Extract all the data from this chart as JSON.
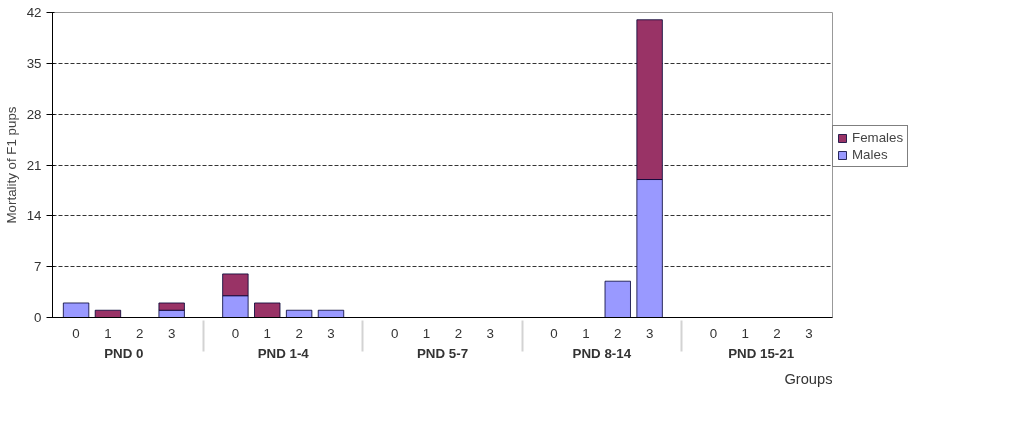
{
  "chart_data": {
    "type": "bar",
    "stacked": true,
    "ylabel": "Mortality of F1 pups",
    "xlabel": "Groups",
    "categories": [
      "0",
      "1",
      "2",
      "3",
      "0",
      "1",
      "2",
      "3",
      "0",
      "1",
      "2",
      "3",
      "0",
      "1",
      "2",
      "3",
      "0",
      "1",
      "2",
      "3"
    ],
    "annotations": [
      "PND 0",
      "PND 1-4",
      "PND 5-7",
      "PND 8-14",
      "PND 15-21"
    ],
    "series": [
      {
        "name": "Males",
        "color": "#9999ff",
        "values": [
          2,
          0,
          0,
          1,
          3,
          0,
          1,
          1,
          0,
          0,
          0,
          0,
          0,
          0,
          5,
          19,
          0,
          0,
          0,
          0
        ]
      },
      {
        "name": "Females",
        "color": "#993366",
        "values": [
          0,
          1,
          0,
          1,
          3,
          2,
          0,
          0,
          0,
          0,
          0,
          0,
          0,
          0,
          0,
          22,
          0,
          0,
          0,
          0
        ]
      }
    ],
    "ylim": [
      0,
      42
    ],
    "yticks": [
      0,
      7,
      14,
      21,
      28,
      35,
      42
    ],
    "grid": "y",
    "line_style": "dashed",
    "legend": "right"
  }
}
